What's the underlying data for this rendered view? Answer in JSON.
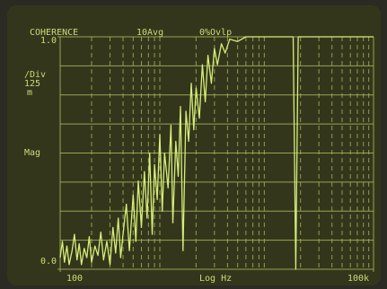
{
  "chart_data": {
    "type": "line",
    "title": "COHERENCE",
    "averaging": "10Avg",
    "overlap": "0%Ovlp",
    "scale_label": "/Div",
    "scale_value": "125",
    "scale_unit": "m",
    "y_label": "Mag",
    "x_label": "Log Hz",
    "log_x": true,
    "color": "#d6ee78",
    "xlim": [
      100,
      100000
    ],
    "ylim": [
      0,
      1
    ],
    "xticks": [
      {
        "value": 100,
        "label": "100"
      },
      {
        "value": 100000,
        "label": "100k"
      }
    ],
    "yticks": [
      {
        "value": 0,
        "label": "0.0"
      },
      {
        "value": 1,
        "label": "1.0"
      }
    ],
    "x": [
      100,
      105,
      110,
      116,
      122,
      130,
      137,
      145,
      152,
      160,
      170,
      180,
      190,
      200,
      215,
      230,
      245,
      260,
      280,
      300,
      320,
      340,
      360,
      380,
      400,
      430,
      460,
      500,
      530,
      560,
      600,
      640,
      680,
      720,
      760,
      800,
      850,
      900,
      950,
      1000,
      1080,
      1150,
      1200,
      1280,
      1350,
      1420,
      1500,
      1600,
      1700,
      1800,
      1900,
      2000,
      2150,
      2300,
      2450,
      2600,
      2800,
      3000,
      3200,
      3500,
      3800,
      4200,
      5000,
      6000,
      8000,
      12000,
      17000,
      18000,
      19000,
      30000,
      60000,
      100000
    ],
    "y": [
      0.05,
      0.12,
      0.03,
      0.1,
      0.02,
      0.08,
      0.15,
      0.04,
      0.11,
      0.02,
      0.09,
      0.05,
      0.14,
      0.03,
      0.1,
      0.06,
      0.16,
      0.04,
      0.12,
      0.02,
      0.18,
      0.07,
      0.22,
      0.05,
      0.15,
      0.28,
      0.08,
      0.32,
      0.12,
      0.38,
      0.18,
      0.42,
      0.22,
      0.5,
      0.15,
      0.45,
      0.3,
      0.58,
      0.25,
      0.5,
      0.35,
      0.62,
      0.2,
      0.55,
      0.4,
      0.7,
      0.08,
      0.68,
      0.55,
      0.8,
      0.6,
      0.78,
      0.65,
      0.88,
      0.72,
      0.92,
      0.8,
      0.95,
      0.88,
      0.97,
      0.93,
      0.99,
      0.98,
      1.0,
      1.0,
      1.0,
      1.0,
      0.0,
      1.0,
      1.0,
      1.0,
      1.0
    ]
  }
}
